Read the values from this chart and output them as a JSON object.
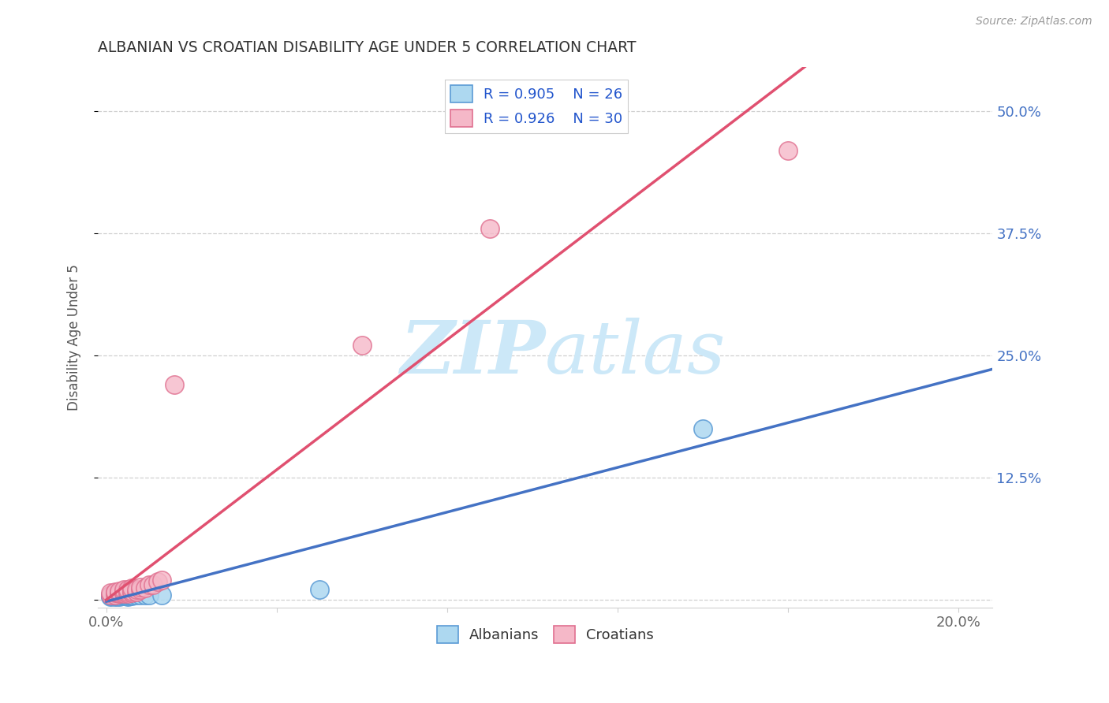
{
  "title": "ALBANIAN VS CROATIAN DISABILITY AGE UNDER 5 CORRELATION CHART",
  "source": "Source: ZipAtlas.com",
  "xlim": [
    -0.002,
    0.208
  ],
  "ylim": [
    -0.008,
    0.545
  ],
  "albanians_R": 0.905,
  "albanians_N": 26,
  "croatians_R": 0.926,
  "croatians_N": 30,
  "blue_scatter": "#add8f0",
  "blue_edge": "#5b9bd5",
  "blue_line": "#4472c4",
  "pink_scatter": "#f5b8c8",
  "pink_edge": "#e07090",
  "pink_line": "#e05070",
  "watermark_color": "#cce8f8",
  "grid_color": "#d0d0d0",
  "title_color": "#333333",
  "source_color": "#999999",
  "ylabel_color": "#4472c4",
  "tick_label_color": "#666666",
  "legend_label1": "Albanians",
  "legend_label2": "Croatians",
  "albanians_x": [
    0.001,
    0.001,
    0.001,
    0.002,
    0.002,
    0.002,
    0.002,
    0.003,
    0.003,
    0.003,
    0.004,
    0.004,
    0.004,
    0.005,
    0.005,
    0.005,
    0.005,
    0.006,
    0.006,
    0.007,
    0.008,
    0.009,
    0.01,
    0.013,
    0.05,
    0.14
  ],
  "albanians_y": [
    0.003,
    0.004,
    0.005,
    0.003,
    0.005,
    0.004,
    0.006,
    0.003,
    0.005,
    0.004,
    0.004,
    0.005,
    0.006,
    0.003,
    0.004,
    0.005,
    0.006,
    0.004,
    0.005,
    0.005,
    0.005,
    0.005,
    0.005,
    0.005,
    0.01,
    0.175
  ],
  "croatians_x": [
    0.001,
    0.001,
    0.002,
    0.002,
    0.002,
    0.003,
    0.003,
    0.003,
    0.004,
    0.004,
    0.004,
    0.005,
    0.005,
    0.005,
    0.006,
    0.006,
    0.006,
    0.007,
    0.007,
    0.008,
    0.008,
    0.009,
    0.01,
    0.011,
    0.012,
    0.013,
    0.016,
    0.06,
    0.09,
    0.16
  ],
  "croatians_y": [
    0.005,
    0.007,
    0.005,
    0.007,
    0.008,
    0.006,
    0.007,
    0.009,
    0.006,
    0.008,
    0.01,
    0.006,
    0.008,
    0.01,
    0.007,
    0.009,
    0.012,
    0.008,
    0.01,
    0.01,
    0.013,
    0.012,
    0.015,
    0.015,
    0.018,
    0.02,
    0.22,
    0.26,
    0.38,
    0.46
  ],
  "yticks": [
    0.0,
    0.125,
    0.25,
    0.375,
    0.5
  ],
  "ylabel_labels": [
    "",
    "12.5%",
    "25.0%",
    "37.5%",
    "50.0%"
  ],
  "xticks": [
    0.0,
    0.04,
    0.08,
    0.12,
    0.16,
    0.2
  ]
}
